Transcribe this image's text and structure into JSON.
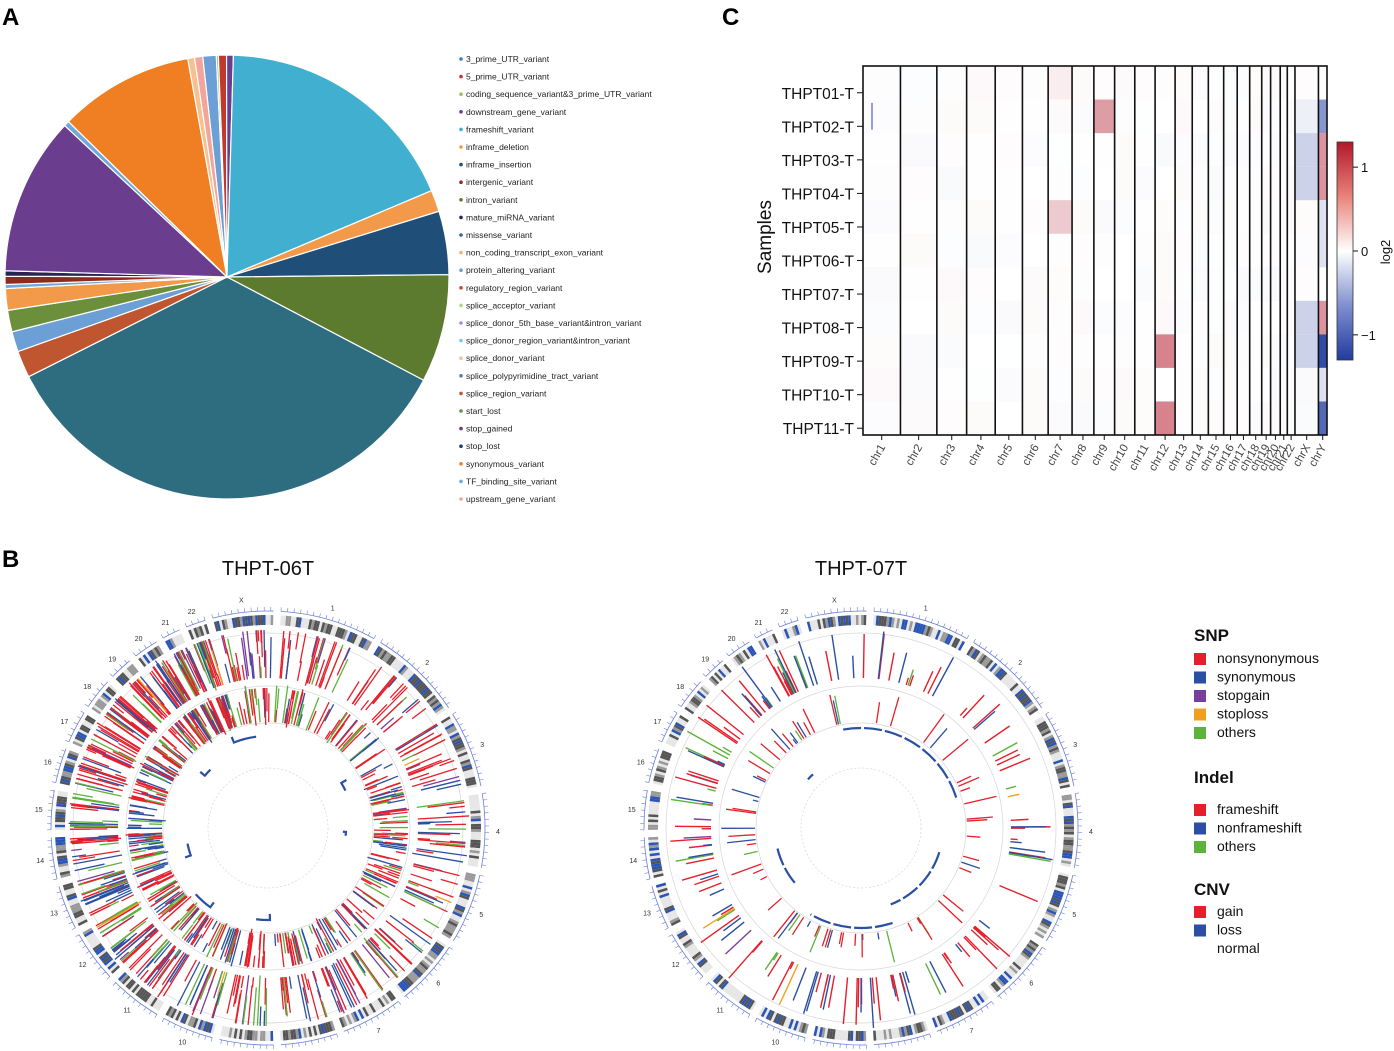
{
  "panels": {
    "a": "A",
    "b": "B",
    "c": "C"
  },
  "chart_data": [
    {
      "type": "pie",
      "panel": "A",
      "title": "",
      "labels": [
        "3_prime_UTR_variant",
        "5_prime_UTR_variant",
        "coding_sequence_variant&3_prime_UTR_variant",
        "downstream_gene_variant",
        "frameshift_variant",
        "inframe_deletion",
        "inframe_insertion",
        "intergenic_variant",
        "intron_variant",
        "mature_miRNA_variant",
        "missense_variant",
        "non_coding_transcript_exon_variant",
        "protein_altering_variant",
        "regulatory_region_variant",
        "splice_acceptor_variant",
        "splice_donor_5th_base_variant&intron_variant",
        "splice_donor_region_variant&intron_variant",
        "splice_donor_variant",
        "splice_polypyrimidine_tract_variant",
        "splice_region_variant",
        "start_lost",
        "stop_gained",
        "stop_lost",
        "synonymous_variant",
        "TF_binding_site_variant",
        "upstream_gene_variant"
      ],
      "colors": [
        "#3a7fc1",
        "#c0392b",
        "#9bc15a",
        "#6a3d8f",
        "#41afcf",
        "#f29a4a",
        "#1f4e79",
        "#8e2a1e",
        "#5d7b2f",
        "#2b2450",
        "#2e6d80",
        "#f0b27a",
        "#6c9fd6",
        "#c94c2a",
        "#b5d08a",
        "#a98fd0",
        "#7fc6e4",
        "#f7c08f",
        "#4f7fb5",
        "#c0562f",
        "#6b8f3a",
        "#5b3f8a",
        "#1d3f6e",
        "#ef7f22",
        "#6fa8dc",
        "#f2a59a"
      ],
      "slices": [
        {
          "label": "protein_altering_variant",
          "value": 1.0
        },
        {
          "label": "coding_sequence_variant&3_prime_UTR_variant",
          "value": 0.15
        },
        {
          "label": "5_prime_UTR_variant",
          "value": 0.6
        },
        {
          "label": "downstream_gene_variant",
          "value": 0.5
        },
        {
          "label": "frameshift_variant",
          "value": 18.5
        },
        {
          "label": "inframe_deletion",
          "value": 1.6
        },
        {
          "label": "inframe_insertion",
          "value": 4.7
        },
        {
          "label": "intron_variant",
          "value": 8.0
        },
        {
          "label": "missense_variant",
          "value": 35.5
        },
        {
          "label": "splice_region_variant",
          "value": 2.0
        },
        {
          "label": "protein_altering_variant",
          "value": 1.5
        },
        {
          "label": "start_lost",
          "value": 1.6
        },
        {
          "label": "inframe_deletion",
          "value": 1.6
        },
        {
          "label": "TF_binding_site_variant",
          "value": 0.3
        },
        {
          "label": "intergenic_variant",
          "value": 0.6
        },
        {
          "label": "mature_miRNA_variant",
          "value": 0.4
        },
        {
          "label": "downstream_gene_variant",
          "value": 11.7
        },
        {
          "label": "TF_binding_site_variant",
          "value": 0.4
        },
        {
          "label": "synonymous_variant",
          "value": 10.0
        },
        {
          "label": "splice_donor_variant",
          "value": 0.5
        },
        {
          "label": "upstream_gene_variant",
          "value": 0.6
        }
      ]
    },
    {
      "type": "heatmap",
      "panel": "C",
      "ylabel": "Samples",
      "colorbar_label": "log2",
      "colorbar_ticks": [
        "1",
        "0",
        "−1"
      ],
      "value_range": [
        -1.3,
        1.3
      ],
      "samples": [
        "THPT01-T",
        "THPT02-T",
        "THPT03-T",
        "THPT04-T",
        "THPT05-T",
        "THPT06-T",
        "THPT07-T",
        "THPT08-T",
        "THPT09-T",
        "THPT10-T",
        "THPT11-T"
      ],
      "chromosomes": [
        "chr1",
        "chr2",
        "chr3",
        "chr4",
        "chr5",
        "chr6",
        "chr7",
        "chr8",
        "chr9",
        "chr10",
        "chr11",
        "chr12",
        "chr13",
        "chr14",
        "chr15",
        "chr16",
        "chr17",
        "chr18",
        "chr19",
        "chr20",
        "chr21",
        "chr22",
        "chrX",
        "chrY"
      ],
      "chrom_lengths": [
        249,
        242,
        198,
        190,
        181,
        171,
        159,
        145,
        138,
        134,
        135,
        133,
        114,
        107,
        102,
        90,
        83,
        80,
        59,
        64,
        47,
        51,
        156,
        57
      ],
      "segments": [
        {
          "sample": "THPT01-T",
          "chrom": "chr7",
          "value": 0.1
        },
        {
          "sample": "THPT02-T",
          "chrom": "chr9",
          "value": 0.55
        },
        {
          "sample": "THPT02-T",
          "chrom": "chrX",
          "value": -0.1
        },
        {
          "sample": "THPT02-T",
          "chrom": "chrY",
          "value": -0.7
        },
        {
          "sample": "THPT03-T",
          "chrom": "chrX",
          "value": -0.3
        },
        {
          "sample": "THPT03-T",
          "chrom": "chrY",
          "value": 0.6
        },
        {
          "sample": "THPT04-T",
          "chrom": "chrX",
          "value": -0.3
        },
        {
          "sample": "THPT04-T",
          "chrom": "chrY",
          "value": 0.6
        },
        {
          "sample": "THPT05-T",
          "chrom": "chr7",
          "value": 0.3
        },
        {
          "sample": "THPT05-T",
          "chrom": "chrY",
          "value": -0.2
        },
        {
          "sample": "THPT06-T",
          "chrom": "chrY",
          "value": -0.2
        },
        {
          "sample": "THPT08-T",
          "chrom": "chrX",
          "value": -0.3
        },
        {
          "sample": "THPT08-T",
          "chrom": "chrY",
          "value": 0.6
        },
        {
          "sample": "THPT09-T",
          "chrom": "chr12",
          "value": 0.7
        },
        {
          "sample": "THPT09-T",
          "chrom": "chrX",
          "value": -0.3
        },
        {
          "sample": "THPT09-T",
          "chrom": "chrY",
          "value": -1.2
        },
        {
          "sample": "THPT10-T",
          "chrom": "chrY",
          "value": -0.2
        },
        {
          "sample": "THPT11-T",
          "chrom": "chr12",
          "value": 0.7
        },
        {
          "sample": "THPT11-T",
          "chrom": "chrY",
          "value": -1.0
        }
      ]
    },
    {
      "type": "circos",
      "panel": "B",
      "plots": [
        {
          "title": "THPT-06T",
          "tracks": [
            "chromosome ideogram",
            "SNP",
            "Indel",
            "CNV"
          ]
        },
        {
          "title": "THPT-07T",
          "tracks": [
            "chromosome ideogram",
            "SNP",
            "Indel",
            "CNV"
          ]
        }
      ],
      "legend": [
        {
          "heading": "SNP",
          "items": [
            {
              "label": "nonsynonymous",
              "color": "#e5202c"
            },
            {
              "label": "synonymous",
              "color": "#2a4fa3"
            },
            {
              "label": "stopgain",
              "color": "#7a3d9c"
            },
            {
              "label": "stoploss",
              "color": "#f0a020"
            },
            {
              "label": "others",
              "color": "#5cb33b"
            }
          ]
        },
        {
          "heading": "Indel",
          "items": [
            {
              "label": "frameshift",
              "color": "#e5202c"
            },
            {
              "label": "nonframeshift",
              "color": "#2a4fa3"
            },
            {
              "label": "others",
              "color": "#5cb33b"
            }
          ]
        },
        {
          "heading": "CNV",
          "items": [
            {
              "label": "gain",
              "color": "#e5202c"
            },
            {
              "label": "loss",
              "color": "#2a4fa3"
            },
            {
              "label": "normal",
              "color": "none"
            }
          ]
        }
      ],
      "chrom_numbers": [
        "1",
        "2",
        "3",
        "4",
        "5",
        "6",
        "7",
        "8",
        "9",
        "10",
        "11",
        "12",
        "13",
        "14",
        "15",
        "16",
        "17",
        "18",
        "19",
        "20",
        "21",
        "22",
        "X"
      ]
    }
  ]
}
